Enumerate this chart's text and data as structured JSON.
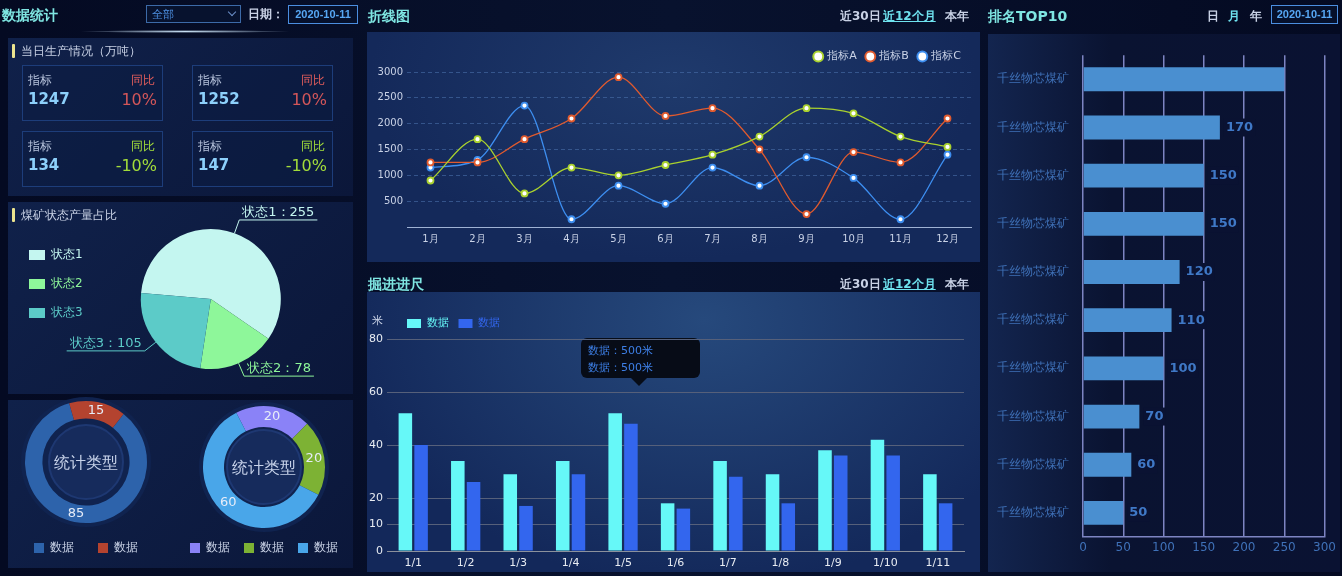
{
  "chart_data": [
    {
      "type": "other",
      "title": "数据统计",
      "subtitle": "当日生产情况（万吨）",
      "annotations": [
        "全部",
        "日期：",
        "2020-10-11",
        "指标",
        "1247",
        "同比",
        "10%",
        "指标",
        "1252",
        "同比",
        "10%",
        "指标",
        "134",
        "同比",
        "-10%",
        "指标",
        "147",
        "同比",
        "-10%"
      ]
    },
    {
      "type": "pie",
      "title": "煤矿状态产量占比",
      "categories": [
        "状态1",
        "状态2",
        "状态3"
      ],
      "values": [
        255,
        78,
        105
      ],
      "colors": [
        "#c4f6f0",
        "#8ef79a",
        "#5ccbc8"
      ],
      "value_labels": [
        "状态1：255",
        "状态2：78",
        "状态3：105"
      ],
      "legend": "top left"
    },
    {
      "type": "donut",
      "title": "统计类型",
      "categories": [
        "数据",
        "数据"
      ],
      "values": [
        85,
        15
      ],
      "colors": [
        "#2d63ab",
        "#b4432f"
      ],
      "data_labels": true,
      "legend": "bottom"
    },
    {
      "type": "donut",
      "title": "统计类型",
      "categories": [
        "数据",
        "数据",
        "数据"
      ],
      "values": [
        20,
        20,
        60
      ],
      "colors": [
        "#8a82f7",
        "#7db234",
        "#49a6e9"
      ],
      "data_labels": true,
      "legend": "bottom"
    },
    {
      "type": "line",
      "title": "折线图",
      "annotations": [
        "近30日",
        "近12个月",
        "本年"
      ],
      "categories": [
        "1月",
        "2月",
        "3月",
        "4月",
        "5月",
        "6月",
        "7月",
        "8月",
        "9月",
        "10月",
        "11月",
        "12月"
      ],
      "series": [
        {
          "name": "指标A",
          "color": "#a9d12e",
          "values": [
            900,
            1700,
            650,
            1150,
            1000,
            1200,
            1400,
            1750,
            2300,
            2200,
            1750,
            1550
          ]
        },
        {
          "name": "指标B",
          "color": "#e05a2e",
          "values": [
            1250,
            1250,
            1700,
            2100,
            2900,
            2150,
            2300,
            1500,
            250,
            1450,
            1250,
            2100
          ]
        },
        {
          "name": "指标C",
          "color": "#3d8ef0",
          "values": [
            1150,
            1300,
            2350,
            150,
            800,
            450,
            1150,
            800,
            1350,
            950,
            150,
            1400
          ]
        }
      ],
      "ylim": [
        0,
        3000
      ],
      "yticks": [
        500,
        1000,
        1500,
        2000,
        2500,
        3000
      ],
      "grid": "y",
      "legend": "top right",
      "marker": "circle"
    },
    {
      "type": "bar",
      "title": "掘进进尺",
      "ylabel": "米",
      "annotations": [
        "近30日",
        "近12个月",
        "本年",
        "数据：500米",
        "数据：500米"
      ],
      "categories": [
        "1/1",
        "1/2",
        "1/3",
        "1/4",
        "1/5",
        "1/6",
        "1/7",
        "1/8",
        "1/9",
        "1/10",
        "1/11"
      ],
      "series": [
        {
          "name": "数据",
          "color": "#66f8f8",
          "values": [
            52,
            34,
            29,
            34,
            52,
            18,
            34,
            29,
            38,
            42,
            29
          ]
        },
        {
          "name": "数据",
          "color": "#3366ee",
          "values": [
            40,
            26,
            17,
            29,
            48,
            16,
            28,
            18,
            36,
            36,
            18
          ]
        }
      ],
      "ylim": [
        0,
        80
      ],
      "yticks": [
        0,
        10,
        20,
        40,
        60,
        80
      ],
      "grid": "y",
      "legend": "top left"
    },
    {
      "type": "bar",
      "orientation": "horizontal",
      "title": "排名TOP10",
      "annotations": [
        "日",
        "月",
        "年",
        "2020-10-11"
      ],
      "categories": [
        "千丝物芯煤矿",
        "千丝物芯煤矿",
        "千丝物芯煤矿",
        "千丝物芯煤矿",
        "千丝物芯煤矿",
        "千丝物芯煤矿",
        "千丝物芯煤矿",
        "千丝物芯煤矿",
        "千丝物芯煤矿",
        "千丝物芯煤矿"
      ],
      "values": [
        250,
        170,
        150,
        150,
        120,
        110,
        100,
        70,
        60,
        50
      ],
      "color": "#4a8fd0",
      "value_labels": [
        null,
        "170",
        "150",
        "150",
        "120",
        "110",
        "100",
        "70",
        "60",
        "50"
      ],
      "xlim": [
        0,
        300
      ],
      "xticks": [
        0,
        50,
        100,
        150,
        200,
        250,
        300
      ],
      "grid": "x"
    }
  ]
}
